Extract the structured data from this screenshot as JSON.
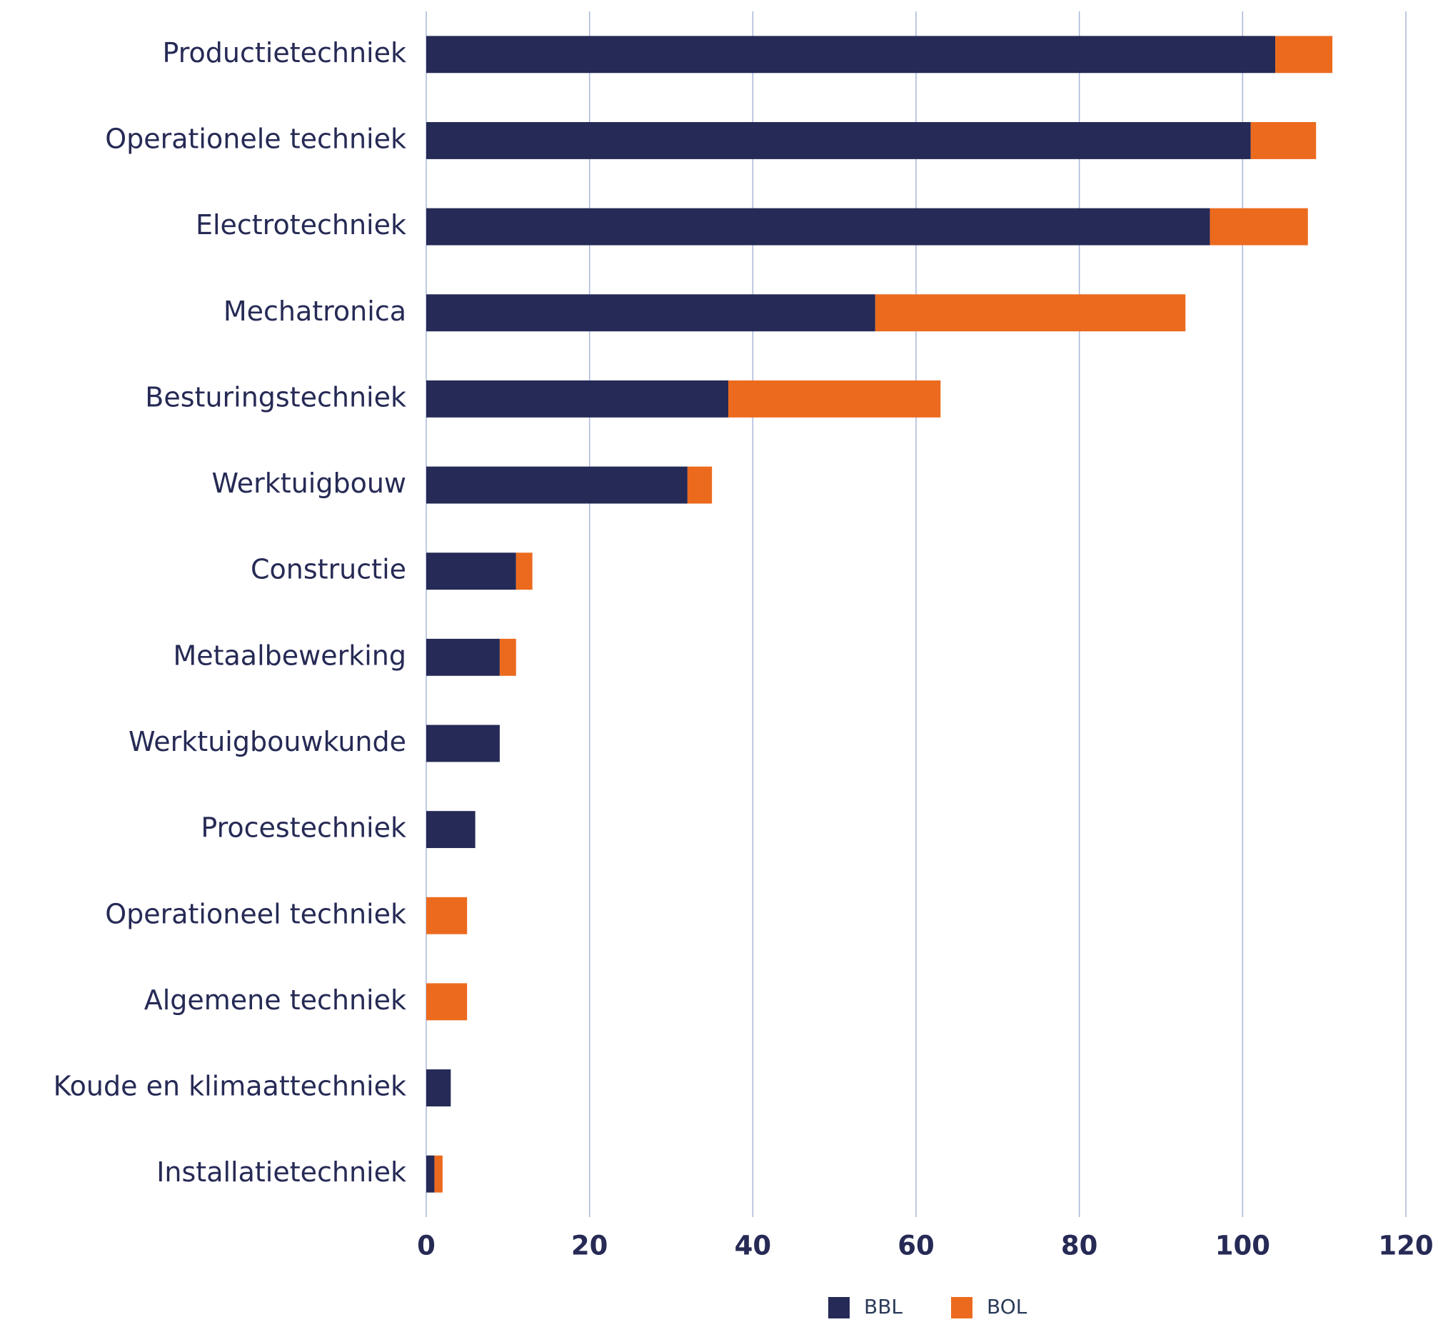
{
  "chart_data": {
    "type": "stacked-bar-horizontal",
    "categories": [
      "Productietechniek",
      "Operationele techniek",
      "Electrotechniek",
      "Mechatronica",
      "Besturingstechniek",
      "Werktuigbouw",
      "Constructie",
      "Metaalbewerking",
      "Werktuigbouwkunde",
      "Procestechniek",
      "Operationeel techniek",
      "Algemene techniek",
      "Koude en klimaattechniek",
      "Installatietechniek"
    ],
    "series": [
      {
        "name": "BBL",
        "color": "#252a56",
        "values": [
          104,
          101,
          96,
          55,
          37,
          32,
          11,
          9,
          9,
          6,
          0,
          0,
          3,
          1
        ]
      },
      {
        "name": "BOL",
        "color": "#ec6a1e",
        "values": [
          7,
          8,
          12,
          38,
          26,
          3,
          2,
          2,
          0,
          0,
          5,
          5,
          0,
          1
        ]
      }
    ],
    "xlim": [
      0,
      120
    ],
    "xticks": [
      0,
      20,
      40,
      60,
      80,
      100,
      120
    ],
    "grid": true,
    "legend": "bottom"
  }
}
